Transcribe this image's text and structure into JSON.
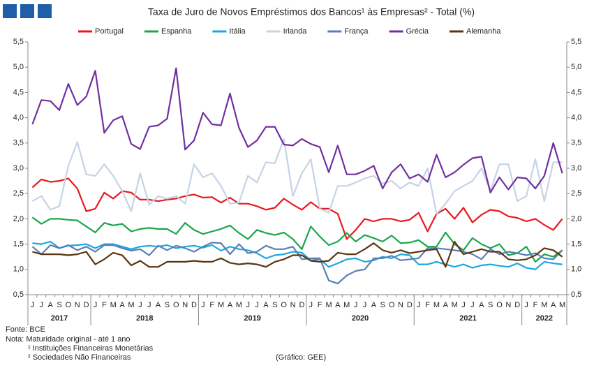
{
  "chart_data": {
    "type": "line",
    "title": "Taxa de Juro de Novos Empréstimos dos Bancos¹ às Empresas² - Total (%)",
    "categories": [
      "J",
      "J",
      "A",
      "S",
      "O",
      "N",
      "D",
      "J",
      "F",
      "M",
      "A",
      "M",
      "J",
      "J",
      "A",
      "S",
      "O",
      "N",
      "D",
      "J",
      "F",
      "M",
      "A",
      "M",
      "J",
      "J",
      "A",
      "S",
      "O",
      "N",
      "D",
      "J",
      "F",
      "M",
      "A",
      "M",
      "J",
      "J",
      "A",
      "S",
      "O",
      "N",
      "D",
      "J",
      "F",
      "M",
      "A",
      "M",
      "J",
      "J",
      "A",
      "S",
      "O",
      "N",
      "D",
      "J",
      "F",
      "M",
      "A",
      "M"
    ],
    "years": [
      "2017",
      "2018",
      "2019",
      "2020",
      "2021",
      "2022"
    ],
    "ylim": [
      0.5,
      5.5
    ],
    "yticks": [
      {
        "value": 0.5,
        "label": "0,5"
      },
      {
        "value": 1,
        "label": "1,0"
      },
      {
        "value": 1.5,
        "label": "1,5"
      },
      {
        "value": 2,
        "label": "2,0"
      },
      {
        "value": 2.5,
        "label": "2,5"
      },
      {
        "value": 3,
        "label": "3,0"
      },
      {
        "value": 3.5,
        "label": "3,5"
      },
      {
        "value": 4,
        "label": "4,0"
      },
      {
        "value": 4.5,
        "label": "4,5"
      },
      {
        "value": 5,
        "label": "5,0"
      },
      {
        "value": 5.5,
        "label": "5,5"
      }
    ],
    "y2lim": [
      0.5,
      5.5
    ],
    "y2ticks": [
      {
        "value": 0.5,
        "label": "0,5"
      },
      {
        "value": 1,
        "label": "1,0"
      },
      {
        "value": 1.5,
        "label": "1,5"
      },
      {
        "value": 2,
        "label": "2,0"
      },
      {
        "value": 2.5,
        "label": "2,5"
      },
      {
        "value": 3,
        "label": "3,0"
      },
      {
        "value": 3.5,
        "label": "3,5"
      },
      {
        "value": 4,
        "label": "4,0"
      },
      {
        "value": 4.5,
        "label": "4,5"
      },
      {
        "value": 5,
        "label": "5,0"
      },
      {
        "value": 5.5,
        "label": "5,5"
      }
    ],
    "grid": false,
    "series": [
      {
        "name": "Portugal",
        "color": "#e8191c",
        "values": [
          2.62,
          2.78,
          2.73,
          2.75,
          2.8,
          2.6,
          2.15,
          2.2,
          2.52,
          2.4,
          2.55,
          2.52,
          2.38,
          2.38,
          2.35,
          2.38,
          2.4,
          2.45,
          2.48,
          2.42,
          2.43,
          2.32,
          2.42,
          2.3,
          2.3,
          2.25,
          2.18,
          2.22,
          2.4,
          2.28,
          2.18,
          2.33,
          2.2,
          2.2,
          2.1,
          1.6,
          1.78,
          2.0,
          1.95,
          2.0,
          2.0,
          1.95,
          1.98,
          2.12,
          1.75,
          2.1,
          2.2,
          2.0,
          2.22,
          1.93,
          2.08,
          2.18,
          2.15,
          2.05,
          2.02,
          1.95,
          2.0,
          1.88,
          1.78,
          2.0
        ]
      },
      {
        "name": "Espanha",
        "color": "#1aa64a",
        "values": [
          2.03,
          1.9,
          2.0,
          2.0,
          1.98,
          1.97,
          1.85,
          1.73,
          1.92,
          1.87,
          1.9,
          1.75,
          1.8,
          1.82,
          1.8,
          1.8,
          1.7,
          1.92,
          1.78,
          1.7,
          1.75,
          1.8,
          1.87,
          1.72,
          1.6,
          1.78,
          1.72,
          1.68,
          1.73,
          1.6,
          1.4,
          1.85,
          1.65,
          1.48,
          1.55,
          1.72,
          1.55,
          1.68,
          1.62,
          1.55,
          1.67,
          1.52,
          1.53,
          1.58,
          1.45,
          1.45,
          1.73,
          1.5,
          1.38,
          1.62,
          1.5,
          1.42,
          1.5,
          1.28,
          1.32,
          1.45,
          1.15,
          1.3,
          1.25,
          1.38
        ]
      },
      {
        "name": "Itália",
        "color": "#1ba8e0",
        "values": [
          1.52,
          1.5,
          1.55,
          1.42,
          1.47,
          1.48,
          1.5,
          1.42,
          1.5,
          1.5,
          1.45,
          1.4,
          1.45,
          1.47,
          1.45,
          1.48,
          1.42,
          1.45,
          1.47,
          1.43,
          1.48,
          1.37,
          1.45,
          1.4,
          1.38,
          1.32,
          1.22,
          1.28,
          1.3,
          1.35,
          1.33,
          1.18,
          1.2,
          1.05,
          1.12,
          1.2,
          1.22,
          1.15,
          1.18,
          1.25,
          1.22,
          1.3,
          1.28,
          1.1,
          1.1,
          1.15,
          1.1,
          1.05,
          1.1,
          1.03,
          1.08,
          1.1,
          1.07,
          1.05,
          1.12,
          1.03,
          1.0,
          1.15,
          1.12,
          1.1
        ]
      },
      {
        "name": "Irlanda",
        "color": "#c5d3e6",
        "values": [
          2.35,
          2.45,
          2.18,
          2.25,
          3.05,
          3.52,
          2.88,
          2.85,
          3.08,
          2.85,
          2.55,
          2.15,
          2.9,
          2.28,
          2.45,
          2.4,
          2.45,
          2.3,
          3.08,
          2.82,
          2.9,
          2.65,
          2.3,
          2.32,
          2.85,
          2.72,
          3.12,
          3.1,
          3.58,
          2.45,
          2.9,
          3.18,
          2.2,
          2.12,
          2.65,
          2.65,
          2.72,
          2.8,
          2.85,
          2.7,
          2.75,
          2.6,
          2.72,
          2.65,
          3.0,
          2.1,
          2.3,
          2.55,
          2.65,
          2.75,
          3.0,
          2.55,
          3.08,
          3.08,
          2.35,
          2.45,
          3.18,
          2.35,
          3.12,
          3.12
        ]
      },
      {
        "name": "França",
        "color": "#5b7fb4",
        "values": [
          1.45,
          1.3,
          1.48,
          1.42,
          1.48,
          1.38,
          1.45,
          1.35,
          1.48,
          1.48,
          1.42,
          1.37,
          1.4,
          1.28,
          1.47,
          1.38,
          1.47,
          1.42,
          1.35,
          1.45,
          1.53,
          1.52,
          1.3,
          1.5,
          1.32,
          1.35,
          1.47,
          1.4,
          1.4,
          1.45,
          1.2,
          1.22,
          1.22,
          0.78,
          0.72,
          0.88,
          0.97,
          1.0,
          1.22,
          1.22,
          1.27,
          1.18,
          1.2,
          1.22,
          1.42,
          1.42,
          1.4,
          1.38,
          1.35,
          1.3,
          1.2,
          1.4,
          1.3,
          1.35,
          1.32,
          1.28,
          1.32,
          1.22,
          1.2,
          1.38
        ]
      },
      {
        "name": "Grécia",
        "color": "#7030a0",
        "values": [
          3.87,
          4.35,
          4.33,
          4.15,
          4.67,
          4.25,
          4.42,
          4.93,
          3.7,
          3.95,
          4.03,
          3.48,
          3.38,
          3.82,
          3.85,
          3.98,
          4.98,
          3.37,
          3.55,
          4.1,
          3.87,
          3.85,
          4.48,
          3.8,
          3.42,
          3.55,
          3.82,
          3.82,
          3.47,
          3.45,
          3.58,
          3.48,
          3.42,
          2.92,
          3.45,
          2.88,
          2.88,
          2.95,
          3.05,
          2.6,
          2.92,
          3.08,
          2.8,
          2.88,
          2.73,
          3.27,
          2.82,
          2.92,
          3.07,
          3.2,
          3.23,
          2.52,
          2.82,
          2.58,
          2.82,
          2.8,
          2.6,
          2.85,
          3.5,
          2.9
        ]
      },
      {
        "name": "Alemanha",
        "color": "#5a3510",
        "values": [
          1.35,
          1.3,
          1.3,
          1.3,
          1.28,
          1.3,
          1.35,
          1.1,
          1.2,
          1.33,
          1.28,
          1.08,
          1.17,
          1.05,
          1.05,
          1.15,
          1.15,
          1.15,
          1.17,
          1.15,
          1.15,
          1.22,
          1.13,
          1.1,
          1.12,
          1.1,
          1.05,
          1.15,
          1.2,
          1.28,
          1.28,
          1.17,
          1.15,
          1.17,
          1.33,
          1.3,
          1.3,
          1.4,
          1.52,
          1.38,
          1.33,
          1.38,
          1.32,
          1.35,
          1.38,
          1.4,
          1.05,
          1.55,
          1.3,
          1.35,
          1.4,
          1.35,
          1.35,
          1.2,
          1.18,
          1.2,
          1.28,
          1.42,
          1.38,
          1.25
        ]
      }
    ]
  },
  "notes": {
    "source": "Fonte: BCE",
    "note": "Nota: Maturidade original - até 1 ano",
    "fn1": "¹ Instituições Financeiras Monetárias",
    "fn2": "² Sociedades Não Financeiras",
    "credit": "(Gráfico: GEE)"
  }
}
